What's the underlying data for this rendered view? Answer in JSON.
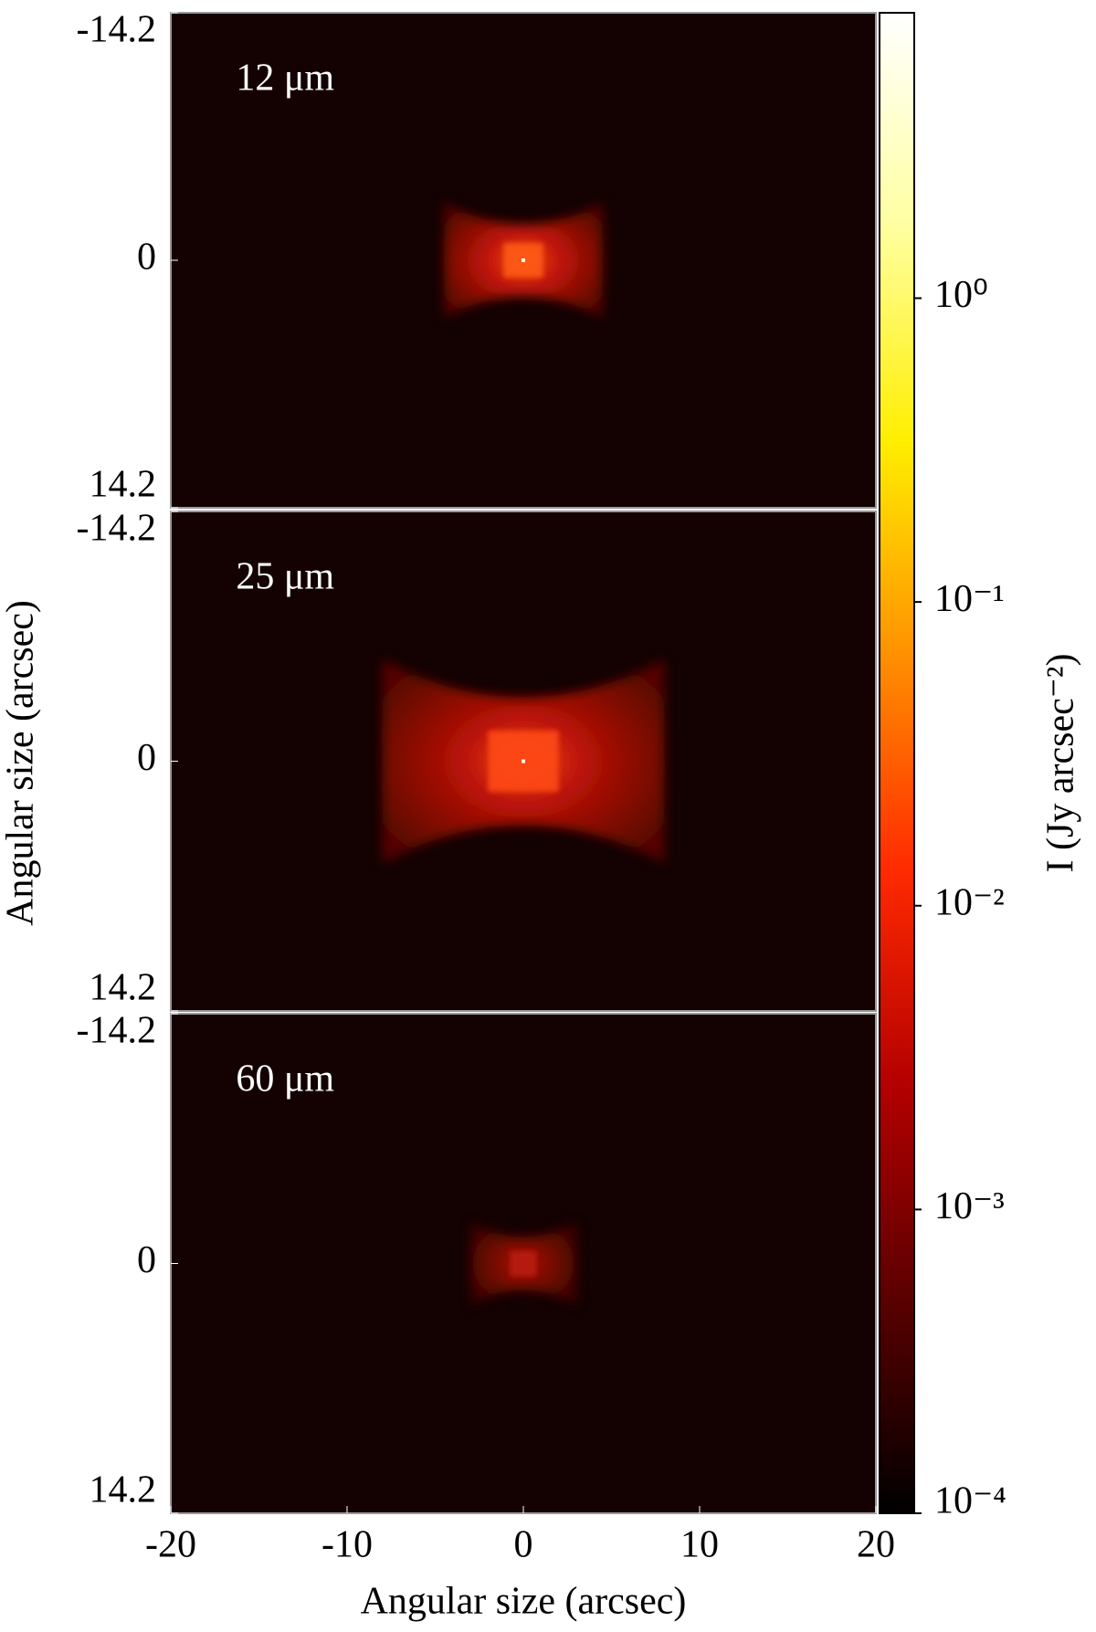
{
  "chart_data": [
    {
      "type": "image",
      "label": "12 μm",
      "ylim": [
        -14.2,
        14.2
      ],
      "yticks": [
        -14.2,
        0,
        14.2
      ],
      "xlim": [
        -20,
        20
      ],
      "background": "#140202"
    },
    {
      "type": "image",
      "label": "25 μm",
      "ylim": [
        -14.2,
        14.2
      ],
      "yticks": [
        -14.2,
        0,
        14.2
      ],
      "xlim": [
        -20,
        20
      ],
      "background": "#140202",
      "ylabel": "Angular size (arcsec)"
    },
    {
      "type": "image",
      "label": "60 μm",
      "ylim": [
        -14.2,
        14.2
      ],
      "yticks": [
        -14.2,
        0,
        14.2
      ],
      "xlim": [
        -20,
        20
      ],
      "xticks": [
        -20,
        -10,
        0,
        10,
        20
      ],
      "background": "#140202",
      "xlabel": "Angular size (arcsec)"
    },
    {
      "type": "colorbar",
      "label": "I (Jy arcsec⁻²)",
      "log": true,
      "clim": [
        0.0001,
        8.7
      ],
      "cticks": [
        {
          "value": 0.0001,
          "label": "10⁻⁴"
        },
        {
          "value": 0.001,
          "label": "10⁻³"
        },
        {
          "value": 0.01,
          "label": "10⁻²"
        },
        {
          "value": 0.1,
          "label": "10⁻¹"
        },
        {
          "value": 1,
          "label": "10⁰"
        }
      ],
      "colors": [
        "#000000",
        "#5a0000",
        "#b40000",
        "#ff2a00",
        "#ff9000",
        "#ffee00",
        "#ffffa0",
        "#ffffff"
      ]
    }
  ]
}
